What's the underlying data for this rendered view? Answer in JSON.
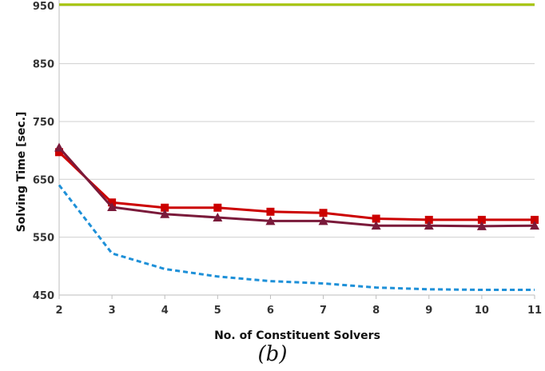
{
  "caption": "(b)",
  "chart_data": {
    "type": "line",
    "xlabel": "No. of Constituent Solvers",
    "ylabel": "Solving Time [sec.]",
    "x": [
      2,
      3,
      4,
      5,
      6,
      7,
      8,
      9,
      10,
      11
    ],
    "xlim": [
      2,
      11
    ],
    "ylim": [
      450,
      960
    ],
    "yticks": [
      450,
      550,
      650,
      750,
      850,
      950
    ],
    "grid": "horizontal",
    "legend": "none",
    "series": [
      {
        "color": "#a5c400",
        "style": "solid",
        "marker": "none",
        "values": [
          952,
          952,
          952,
          952,
          952,
          952,
          952,
          952,
          952,
          952
        ]
      },
      {
        "color": "#cc0000",
        "style": "solid",
        "marker": "square",
        "values": [
          697,
          610,
          601,
          601,
          594,
          592,
          582,
          580,
          580,
          580
        ]
      },
      {
        "color": "#7a1a3a",
        "style": "solid",
        "marker": "triangle",
        "values": [
          705,
          602,
          590,
          584,
          578,
          578,
          570,
          570,
          569,
          570
        ]
      },
      {
        "color": "#1e90d8",
        "style": "dashed",
        "marker": "none",
        "values": [
          640,
          522,
          495,
          482,
          474,
          470,
          463,
          460,
          459,
          459
        ]
      }
    ]
  }
}
